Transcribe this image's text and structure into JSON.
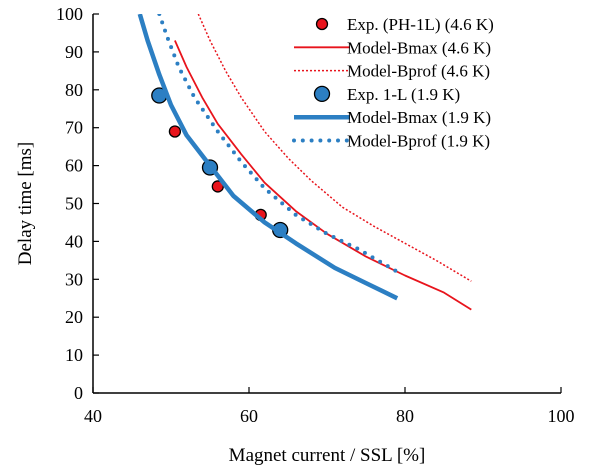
{
  "chart_data": {
    "type": "line",
    "xlabel": "Magnet current / SSL [%]",
    "ylabel": "Delay time [ms]",
    "xlim": [
      40,
      100
    ],
    "ylim": [
      0,
      100
    ],
    "x_ticks": [
      40,
      60,
      80,
      100
    ],
    "y_ticks": [
      0,
      10,
      20,
      30,
      40,
      50,
      60,
      70,
      80,
      90,
      100
    ],
    "grid": false,
    "legend_position": "top-right",
    "series": [
      {
        "name": "Exp. (PH-1L) (4.6 K)",
        "kind": "marker",
        "color": "#e8141c",
        "marker_radius": 5.5,
        "points": [
          [
            50.5,
            69
          ],
          [
            56,
            54.5
          ],
          [
            61.5,
            47
          ]
        ]
      },
      {
        "name": "Model-Bmax (4.6 K)",
        "kind": "line",
        "style": "solid",
        "color": "#e8141c",
        "width": 1.8,
        "points": [
          [
            50.5,
            93
          ],
          [
            52,
            86
          ],
          [
            54,
            78
          ],
          [
            56,
            71
          ],
          [
            59,
            63
          ],
          [
            62,
            55.5
          ],
          [
            66,
            48
          ],
          [
            70,
            42
          ],
          [
            75,
            36
          ],
          [
            80,
            31
          ],
          [
            85,
            26.5
          ],
          [
            88.5,
            22
          ]
        ]
      },
      {
        "name": "Model-Bprof (4.6 K)",
        "kind": "line",
        "style": "dotted",
        "color": "#e8141c",
        "width": 1.5,
        "points": [
          [
            53.5,
            100
          ],
          [
            55,
            93
          ],
          [
            57,
            85
          ],
          [
            59,
            78
          ],
          [
            62,
            69
          ],
          [
            65,
            62
          ],
          [
            68,
            56
          ],
          [
            72,
            49
          ],
          [
            76,
            44
          ],
          [
            80,
            39.5
          ],
          [
            84,
            35
          ],
          [
            88.5,
            29.5
          ]
        ]
      },
      {
        "name": "Exp. 1-L (1.9 K)",
        "kind": "marker",
        "color": "#2c7fc3",
        "marker_radius": 7.5,
        "points": [
          [
            48.5,
            78.5
          ],
          [
            55,
            59.5
          ],
          [
            64,
            43
          ]
        ]
      },
      {
        "name": "Model-Bmax (1.9 K)",
        "kind": "line",
        "style": "solid",
        "color": "#2c7fc3",
        "width": 4.5,
        "points": [
          [
            46,
            100
          ],
          [
            47,
            93
          ],
          [
            48.5,
            84
          ],
          [
            50,
            76
          ],
          [
            52,
            68
          ],
          [
            55,
            60
          ],
          [
            58,
            52
          ],
          [
            62,
            45
          ],
          [
            66,
            39.5
          ],
          [
            71,
            33
          ],
          [
            75,
            29
          ],
          [
            79,
            25
          ]
        ]
      },
      {
        "name": "Model-Bprof (1.9 K)",
        "kind": "line",
        "style": "dotted",
        "color": "#2c7fc3",
        "width": 4,
        "points": [
          [
            48.5,
            100
          ],
          [
            49.5,
            94
          ],
          [
            51,
            86
          ],
          [
            53,
            78
          ],
          [
            56,
            69
          ],
          [
            59,
            61
          ],
          [
            62,
            54
          ],
          [
            66,
            47
          ],
          [
            70,
            42
          ],
          [
            74,
            38
          ],
          [
            79,
            32
          ]
        ]
      }
    ]
  }
}
